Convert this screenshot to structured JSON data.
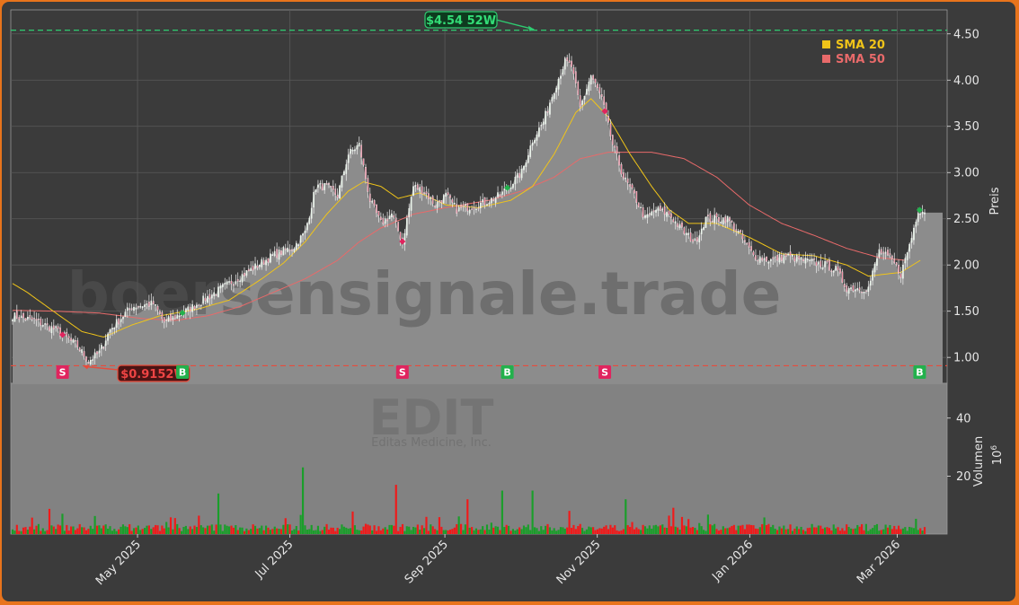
{
  "chart_data": {
    "type": "candlestick",
    "ticker": "EDIT",
    "company": "Editas Medicine, Inc.",
    "watermark": "boersensignale.trade",
    "ylabel": "Preis",
    "volume_label": "Volumen",
    "volume_unit": "10^6",
    "ylim": [
      0.72,
      4.76
    ],
    "volume_ylim": [
      0,
      52
    ],
    "yticks": [
      1.0,
      1.5,
      2.0,
      2.5,
      3.0,
      3.5,
      4.0,
      4.5
    ],
    "ytick_labels": [
      "1.00",
      "1.50",
      "2.00",
      "2.50",
      "3.00",
      "3.50",
      "4.00",
      "4.50"
    ],
    "volume_ticks": [
      20,
      40
    ],
    "volume_tick_labels": [
      "20",
      "40"
    ],
    "xtick_labels": [
      "May 2025",
      "Jul 2025",
      "Sep 2025",
      "Nov 2025",
      "Jan 2026",
      "Mar 2026"
    ],
    "date_range": [
      "2025-03-12",
      "2026-03-12"
    ],
    "high_52w": {
      "value": 4.54,
      "label": "$4.54 52W",
      "color": "#2ecc71"
    },
    "low_52w": {
      "value": 0.91,
      "label": "$0.91 52W",
      "label_visible": "$0.9152W",
      "color": "#e74c3c"
    },
    "legend": [
      {
        "label": "SMA 20",
        "color": "#f0c419"
      },
      {
        "label": "SMA 50",
        "color": "#e86a6a"
      }
    ],
    "signals": [
      {
        "type": "S",
        "date": "2025-04-01"
      },
      {
        "type": "B",
        "date": "2025-05-19"
      },
      {
        "type": "S",
        "date": "2025-08-15"
      },
      {
        "type": "B",
        "date": "2025-09-26"
      },
      {
        "type": "S",
        "date": "2025-11-04"
      },
      {
        "type": "B",
        "date": "2026-03-10"
      }
    ],
    "price_keypoints": [
      [
        0,
        1.45
      ],
      [
        10,
        1.4
      ],
      [
        20,
        1.3
      ],
      [
        30,
        1.12
      ],
      [
        35,
        0.96
      ],
      [
        40,
        1.05
      ],
      [
        45,
        1.3
      ],
      [
        55,
        1.55
      ],
      [
        65,
        1.58
      ],
      [
        70,
        1.38
      ],
      [
        80,
        1.5
      ],
      [
        90,
        1.65
      ],
      [
        100,
        1.8
      ],
      [
        110,
        1.95
      ],
      [
        120,
        2.1
      ],
      [
        130,
        2.2
      ],
      [
        135,
        2.35
      ],
      [
        140,
        2.85
      ],
      [
        145,
        2.85
      ],
      [
        150,
        2.75
      ],
      [
        155,
        3.2
      ],
      [
        160,
        3.3
      ],
      [
        165,
        2.7
      ],
      [
        170,
        2.45
      ],
      [
        175,
        2.55
      ],
      [
        180,
        2.25
      ],
      [
        185,
        2.85
      ],
      [
        190,
        2.8
      ],
      [
        195,
        2.65
      ],
      [
        200,
        2.75
      ],
      [
        205,
        2.6
      ],
      [
        215,
        2.65
      ],
      [
        225,
        2.75
      ],
      [
        235,
        3.0
      ],
      [
        240,
        3.35
      ],
      [
        245,
        3.55
      ],
      [
        250,
        3.9
      ],
      [
        255,
        4.2
      ],
      [
        258,
        4.15
      ],
      [
        262,
        3.7
      ],
      [
        267,
        4.05
      ],
      [
        272,
        3.8
      ],
      [
        277,
        3.3
      ],
      [
        282,
        2.95
      ],
      [
        287,
        2.75
      ],
      [
        292,
        2.5
      ],
      [
        297,
        2.6
      ],
      [
        303,
        2.55
      ],
      [
        310,
        2.35
      ],
      [
        315,
        2.25
      ],
      [
        320,
        2.5
      ],
      [
        330,
        2.5
      ],
      [
        335,
        2.35
      ],
      [
        342,
        2.1
      ],
      [
        350,
        2.05
      ],
      [
        357,
        2.1
      ],
      [
        365,
        2.05
      ],
      [
        375,
        2.0
      ],
      [
        380,
        1.95
      ],
      [
        385,
        1.75
      ],
      [
        395,
        1.75
      ],
      [
        400,
        2.15
      ],
      [
        406,
        2.05
      ],
      [
        410,
        1.9
      ],
      [
        415,
        2.3
      ],
      [
        418,
        2.6
      ],
      [
        421,
        2.58
      ]
    ],
    "sma20_keypoints": [
      [
        0,
        1.8
      ],
      [
        7,
        1.7
      ],
      [
        20,
        1.48
      ],
      [
        32,
        1.28
      ],
      [
        42,
        1.22
      ],
      [
        55,
        1.35
      ],
      [
        68,
        1.45
      ],
      [
        85,
        1.52
      ],
      [
        100,
        1.62
      ],
      [
        115,
        1.85
      ],
      [
        125,
        2.02
      ],
      [
        135,
        2.25
      ],
      [
        145,
        2.55
      ],
      [
        155,
        2.8
      ],
      [
        162,
        2.9
      ],
      [
        170,
        2.85
      ],
      [
        178,
        2.72
      ],
      [
        188,
        2.78
      ],
      [
        200,
        2.65
      ],
      [
        215,
        2.62
      ],
      [
        230,
        2.7
      ],
      [
        240,
        2.85
      ],
      [
        250,
        3.2
      ],
      [
        260,
        3.65
      ],
      [
        267,
        3.8
      ],
      [
        275,
        3.6
      ],
      [
        285,
        3.2
      ],
      [
        295,
        2.85
      ],
      [
        303,
        2.6
      ],
      [
        312,
        2.45
      ],
      [
        325,
        2.45
      ],
      [
        340,
        2.3
      ],
      [
        355,
        2.12
      ],
      [
        370,
        2.1
      ],
      [
        385,
        2.0
      ],
      [
        395,
        1.88
      ],
      [
        410,
        1.92
      ],
      [
        419,
        2.05
      ]
    ],
    "sma50_keypoints": [
      [
        0,
        1.51
      ],
      [
        20,
        1.5
      ],
      [
        40,
        1.48
      ],
      [
        60,
        1.42
      ],
      [
        75,
        1.4
      ],
      [
        90,
        1.45
      ],
      [
        105,
        1.55
      ],
      [
        120,
        1.7
      ],
      [
        135,
        1.85
      ],
      [
        150,
        2.05
      ],
      [
        160,
        2.25
      ],
      [
        170,
        2.4
      ],
      [
        185,
        2.55
      ],
      [
        200,
        2.62
      ],
      [
        220,
        2.7
      ],
      [
        235,
        2.8
      ],
      [
        250,
        2.95
      ],
      [
        262,
        3.15
      ],
      [
        275,
        3.22
      ],
      [
        295,
        3.22
      ],
      [
        310,
        3.15
      ],
      [
        325,
        2.95
      ],
      [
        340,
        2.65
      ],
      [
        355,
        2.45
      ],
      [
        370,
        2.32
      ],
      [
        385,
        2.18
      ],
      [
        400,
        2.08
      ],
      [
        412,
        2.05
      ]
    ]
  }
}
